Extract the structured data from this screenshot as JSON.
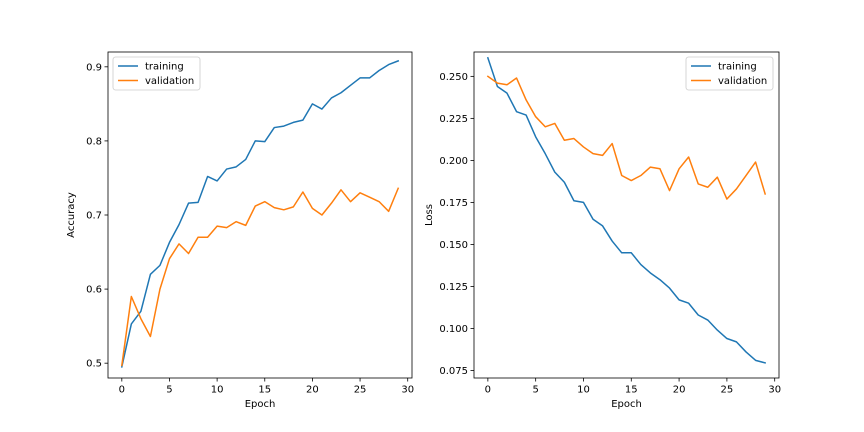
{
  "chart_data": [
    {
      "type": "line",
      "title": "",
      "xlabel": "Epoch",
      "ylabel": "Accuracy",
      "xlim": [
        -1.45,
        30.45
      ],
      "ylim": [
        0.48,
        0.92
      ],
      "xticks": [
        0,
        5,
        10,
        15,
        20,
        25,
        30
      ],
      "yticks": [
        0.5,
        0.6,
        0.7,
        0.8,
        0.9
      ],
      "ytick_labels": [
        "0.5",
        "0.6",
        "0.7",
        "0.8",
        "0.9"
      ],
      "legend_position": "top-left",
      "grid": false,
      "x": [
        0,
        1,
        2,
        3,
        4,
        5,
        6,
        7,
        8,
        9,
        10,
        11,
        12,
        13,
        14,
        15,
        16,
        17,
        18,
        19,
        20,
        21,
        22,
        23,
        24,
        25,
        26,
        27,
        28,
        29
      ],
      "series": [
        {
          "name": "training",
          "color": "#1f77b4",
          "values": [
            0.495,
            0.553,
            0.57,
            0.62,
            0.632,
            0.663,
            0.687,
            0.716,
            0.717,
            0.752,
            0.746,
            0.762,
            0.765,
            0.775,
            0.8,
            0.799,
            0.818,
            0.82,
            0.825,
            0.828,
            0.85,
            0.843,
            0.858,
            0.865,
            0.875,
            0.885,
            0.885,
            0.895,
            0.903,
            0.908
          ]
        },
        {
          "name": "validation",
          "color": "#ff7f0e",
          "values": [
            0.497,
            0.59,
            0.56,
            0.536,
            0.6,
            0.641,
            0.661,
            0.648,
            0.67,
            0.67,
            0.685,
            0.683,
            0.691,
            0.686,
            0.712,
            0.718,
            0.71,
            0.707,
            0.711,
            0.731,
            0.709,
            0.7,
            0.716,
            0.734,
            0.718,
            0.73,
            0.724,
            0.718,
            0.705,
            0.736
          ]
        }
      ]
    },
    {
      "type": "line",
      "title": "",
      "xlabel": "Epoch",
      "ylabel": "Loss",
      "xlim": [
        -1.45,
        30.45
      ],
      "ylim": [
        0.0705,
        0.2645
      ],
      "xticks": [
        0,
        5,
        10,
        15,
        20,
        25,
        30
      ],
      "yticks": [
        0.075,
        0.1,
        0.125,
        0.15,
        0.175,
        0.2,
        0.225,
        0.25
      ],
      "ytick_labels": [
        "0.075",
        "0.100",
        "0.125",
        "0.150",
        "0.175",
        "0.200",
        "0.225",
        "0.250"
      ],
      "legend_position": "top-right",
      "grid": false,
      "x": [
        0,
        1,
        2,
        3,
        4,
        5,
        6,
        7,
        8,
        9,
        10,
        11,
        12,
        13,
        14,
        15,
        16,
        17,
        18,
        19,
        20,
        21,
        22,
        23,
        24,
        25,
        26,
        27,
        28,
        29
      ],
      "series": [
        {
          "name": "training",
          "color": "#1f77b4",
          "values": [
            0.261,
            0.244,
            0.24,
            0.229,
            0.227,
            0.214,
            0.204,
            0.193,
            0.187,
            0.176,
            0.175,
            0.165,
            0.161,
            0.152,
            0.145,
            0.145,
            0.138,
            0.133,
            0.129,
            0.124,
            0.117,
            0.115,
            0.108,
            0.105,
            0.099,
            0.094,
            0.092,
            0.086,
            0.081,
            0.0795
          ]
        },
        {
          "name": "validation",
          "color": "#ff7f0e",
          "values": [
            0.25,
            0.246,
            0.245,
            0.249,
            0.236,
            0.226,
            0.22,
            0.222,
            0.212,
            0.213,
            0.208,
            0.204,
            0.203,
            0.21,
            0.191,
            0.188,
            0.191,
            0.196,
            0.195,
            0.182,
            0.195,
            0.202,
            0.186,
            0.184,
            0.19,
            0.177,
            0.183,
            0.191,
            0.199,
            0.18
          ]
        }
      ]
    }
  ]
}
